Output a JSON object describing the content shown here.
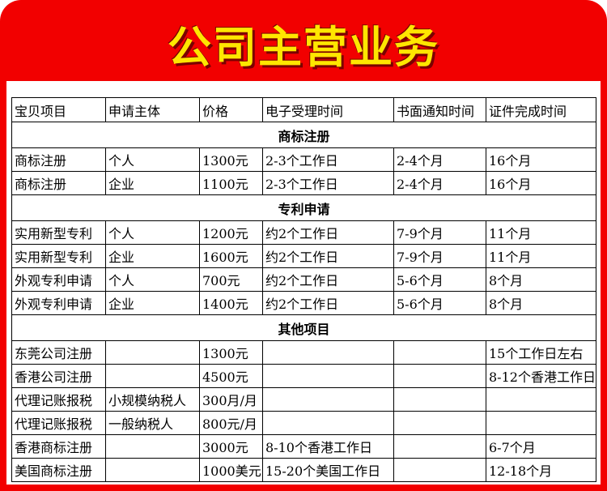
{
  "header": {
    "title": "公司主营业务"
  },
  "table": {
    "columns": [
      "宝贝项目",
      "申请主体",
      "价格",
      "电子受理时间",
      "书面通知时间",
      "证件完成时间"
    ],
    "sections": [
      {
        "title": "商标注册",
        "rows": [
          [
            "商标注册",
            "个人",
            "1300元",
            "2-3个工作日",
            "2-4个月",
            "16个月"
          ],
          [
            "商标注册",
            "企业",
            "1100元",
            "2-3个工作日",
            "2-4个月",
            "16个月"
          ]
        ]
      },
      {
        "title": "专利申请",
        "rows": [
          [
            "实用新型专利",
            "个人",
            "1200元",
            "约2个工作日",
            "7-9个月",
            "11个月"
          ],
          [
            "实用新型专利",
            "企业",
            "1600元",
            "约2个工作日",
            "7-9个月",
            "11个月"
          ],
          [
            "外观专利申请",
            "个人",
            "700元",
            "约2个工作日",
            "5-6个月",
            "8个月"
          ],
          [
            "外观专利申请",
            "企业",
            "1400元",
            "约2个工作日",
            "5-6个月",
            "8个月"
          ]
        ]
      },
      {
        "title": "其他项目",
        "rows": [
          [
            "东莞公司注册",
            null,
            "1300元",
            null,
            null,
            "15个工作日左右"
          ],
          [
            "香港公司注册",
            null,
            "4500元",
            null,
            null,
            "8-12个香港工作日"
          ],
          [
            "代理记账报税",
            "小规模纳税人",
            "300月/月",
            null,
            null,
            null
          ],
          [
            "代理记账报税",
            "一般纳税人",
            "800元/月",
            null,
            null,
            null
          ],
          [
            "香港商标注册",
            null,
            "3000元",
            "8-10个香港工作日",
            null,
            "6-7个月"
          ],
          [
            "美国商标注册",
            null,
            "1000美元",
            "15-20个美国工作日",
            null,
            "12-18个月"
          ]
        ]
      }
    ]
  }
}
